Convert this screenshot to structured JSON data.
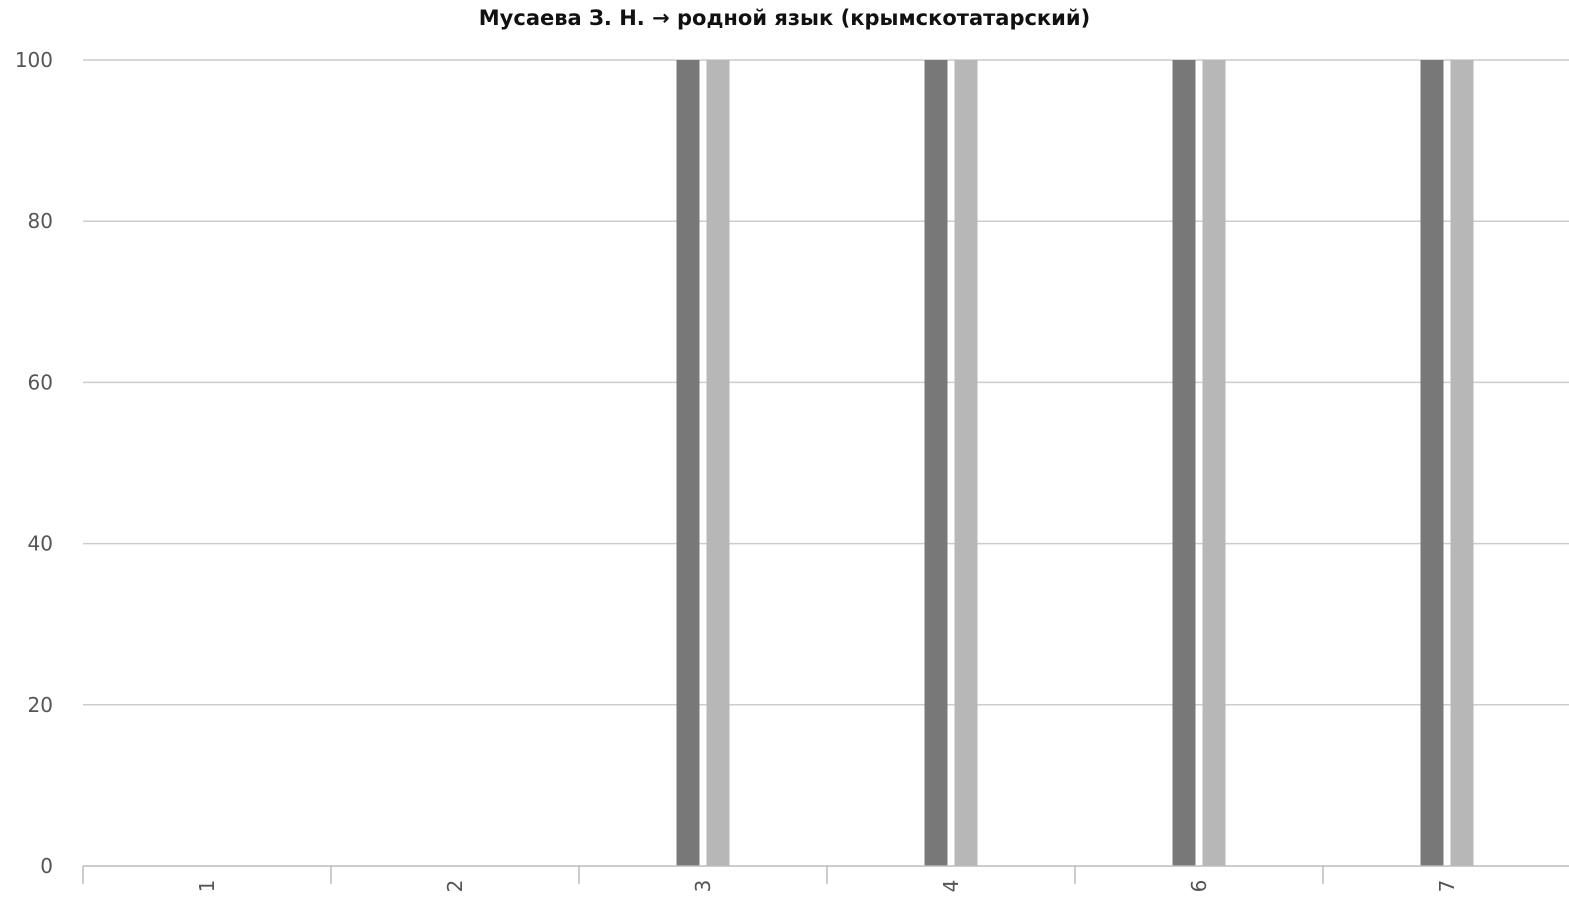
{
  "chart_data": {
    "type": "bar",
    "title": "Мусаева З. Н. → родной язык (крымскотатарский)",
    "xlabel": "",
    "ylabel": "",
    "ylim": [
      0,
      100
    ],
    "yticks": [
      0,
      20,
      40,
      60,
      80,
      100
    ],
    "categories": [
      "1",
      "2",
      "3",
      "4",
      "6",
      "7"
    ],
    "series": [
      {
        "color": "#787878",
        "values": [
          0,
          0,
          100,
          100,
          100,
          100
        ]
      },
      {
        "color": "#b7b7b7",
        "values": [
          0,
          0,
          100,
          100,
          100,
          100
        ]
      }
    ],
    "grid": true,
    "legend": "none",
    "gridline_color": "#cccccc",
    "axis_color": "#bbbbbb"
  }
}
